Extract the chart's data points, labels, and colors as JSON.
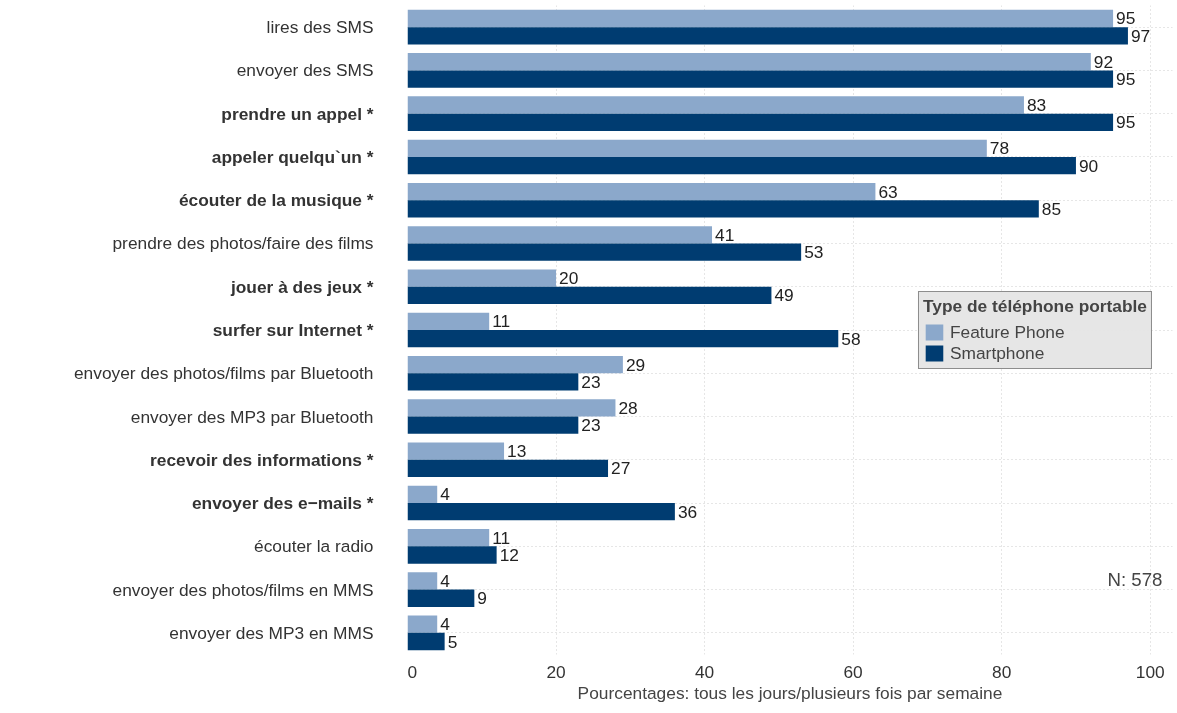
{
  "chart_data": {
    "type": "bar",
    "orientation": "horizontal",
    "xlabel": "Pourcentages: tous les jours/plusieurs fois par semaine",
    "legend_title": "Type de téléphone portable",
    "categories": [
      "lires des SMS",
      "envoyer des SMS",
      "prendre un appel *",
      "appeler quelqu`un *",
      "écouter de la musique *",
      "prendre des photos/faire des films",
      "jouer à des jeux *",
      "surfer sur Internet *",
      "envoyer des photos/films par Bluetooth",
      "envoyer des MP3 par Bluetooth",
      "recevoir des informations *",
      "envoyer des e−mails *",
      "écouter la radio",
      "envoyer des photos/films en MMS",
      "envoyer des MP3 en MMS"
    ],
    "series": [
      {
        "name": "Feature Phone",
        "color": "#8ba8cb",
        "values": [
          95,
          92,
          83,
          78,
          63,
          41,
          20,
          11,
          29,
          28,
          13,
          4,
          11,
          4,
          4
        ]
      },
      {
        "name": "Smartphone",
        "color": "#003c71",
        "values": [
          97,
          95,
          95,
          90,
          85,
          53,
          49,
          58,
          23,
          23,
          27,
          36,
          12,
          9,
          5
        ]
      }
    ],
    "xlim": [
      0,
      103
    ],
    "xticks": [
      0,
      20,
      40,
      60,
      80,
      100
    ],
    "grid": true,
    "legend": "right",
    "data_labels": true,
    "annotations": [
      "N: 578"
    ]
  }
}
